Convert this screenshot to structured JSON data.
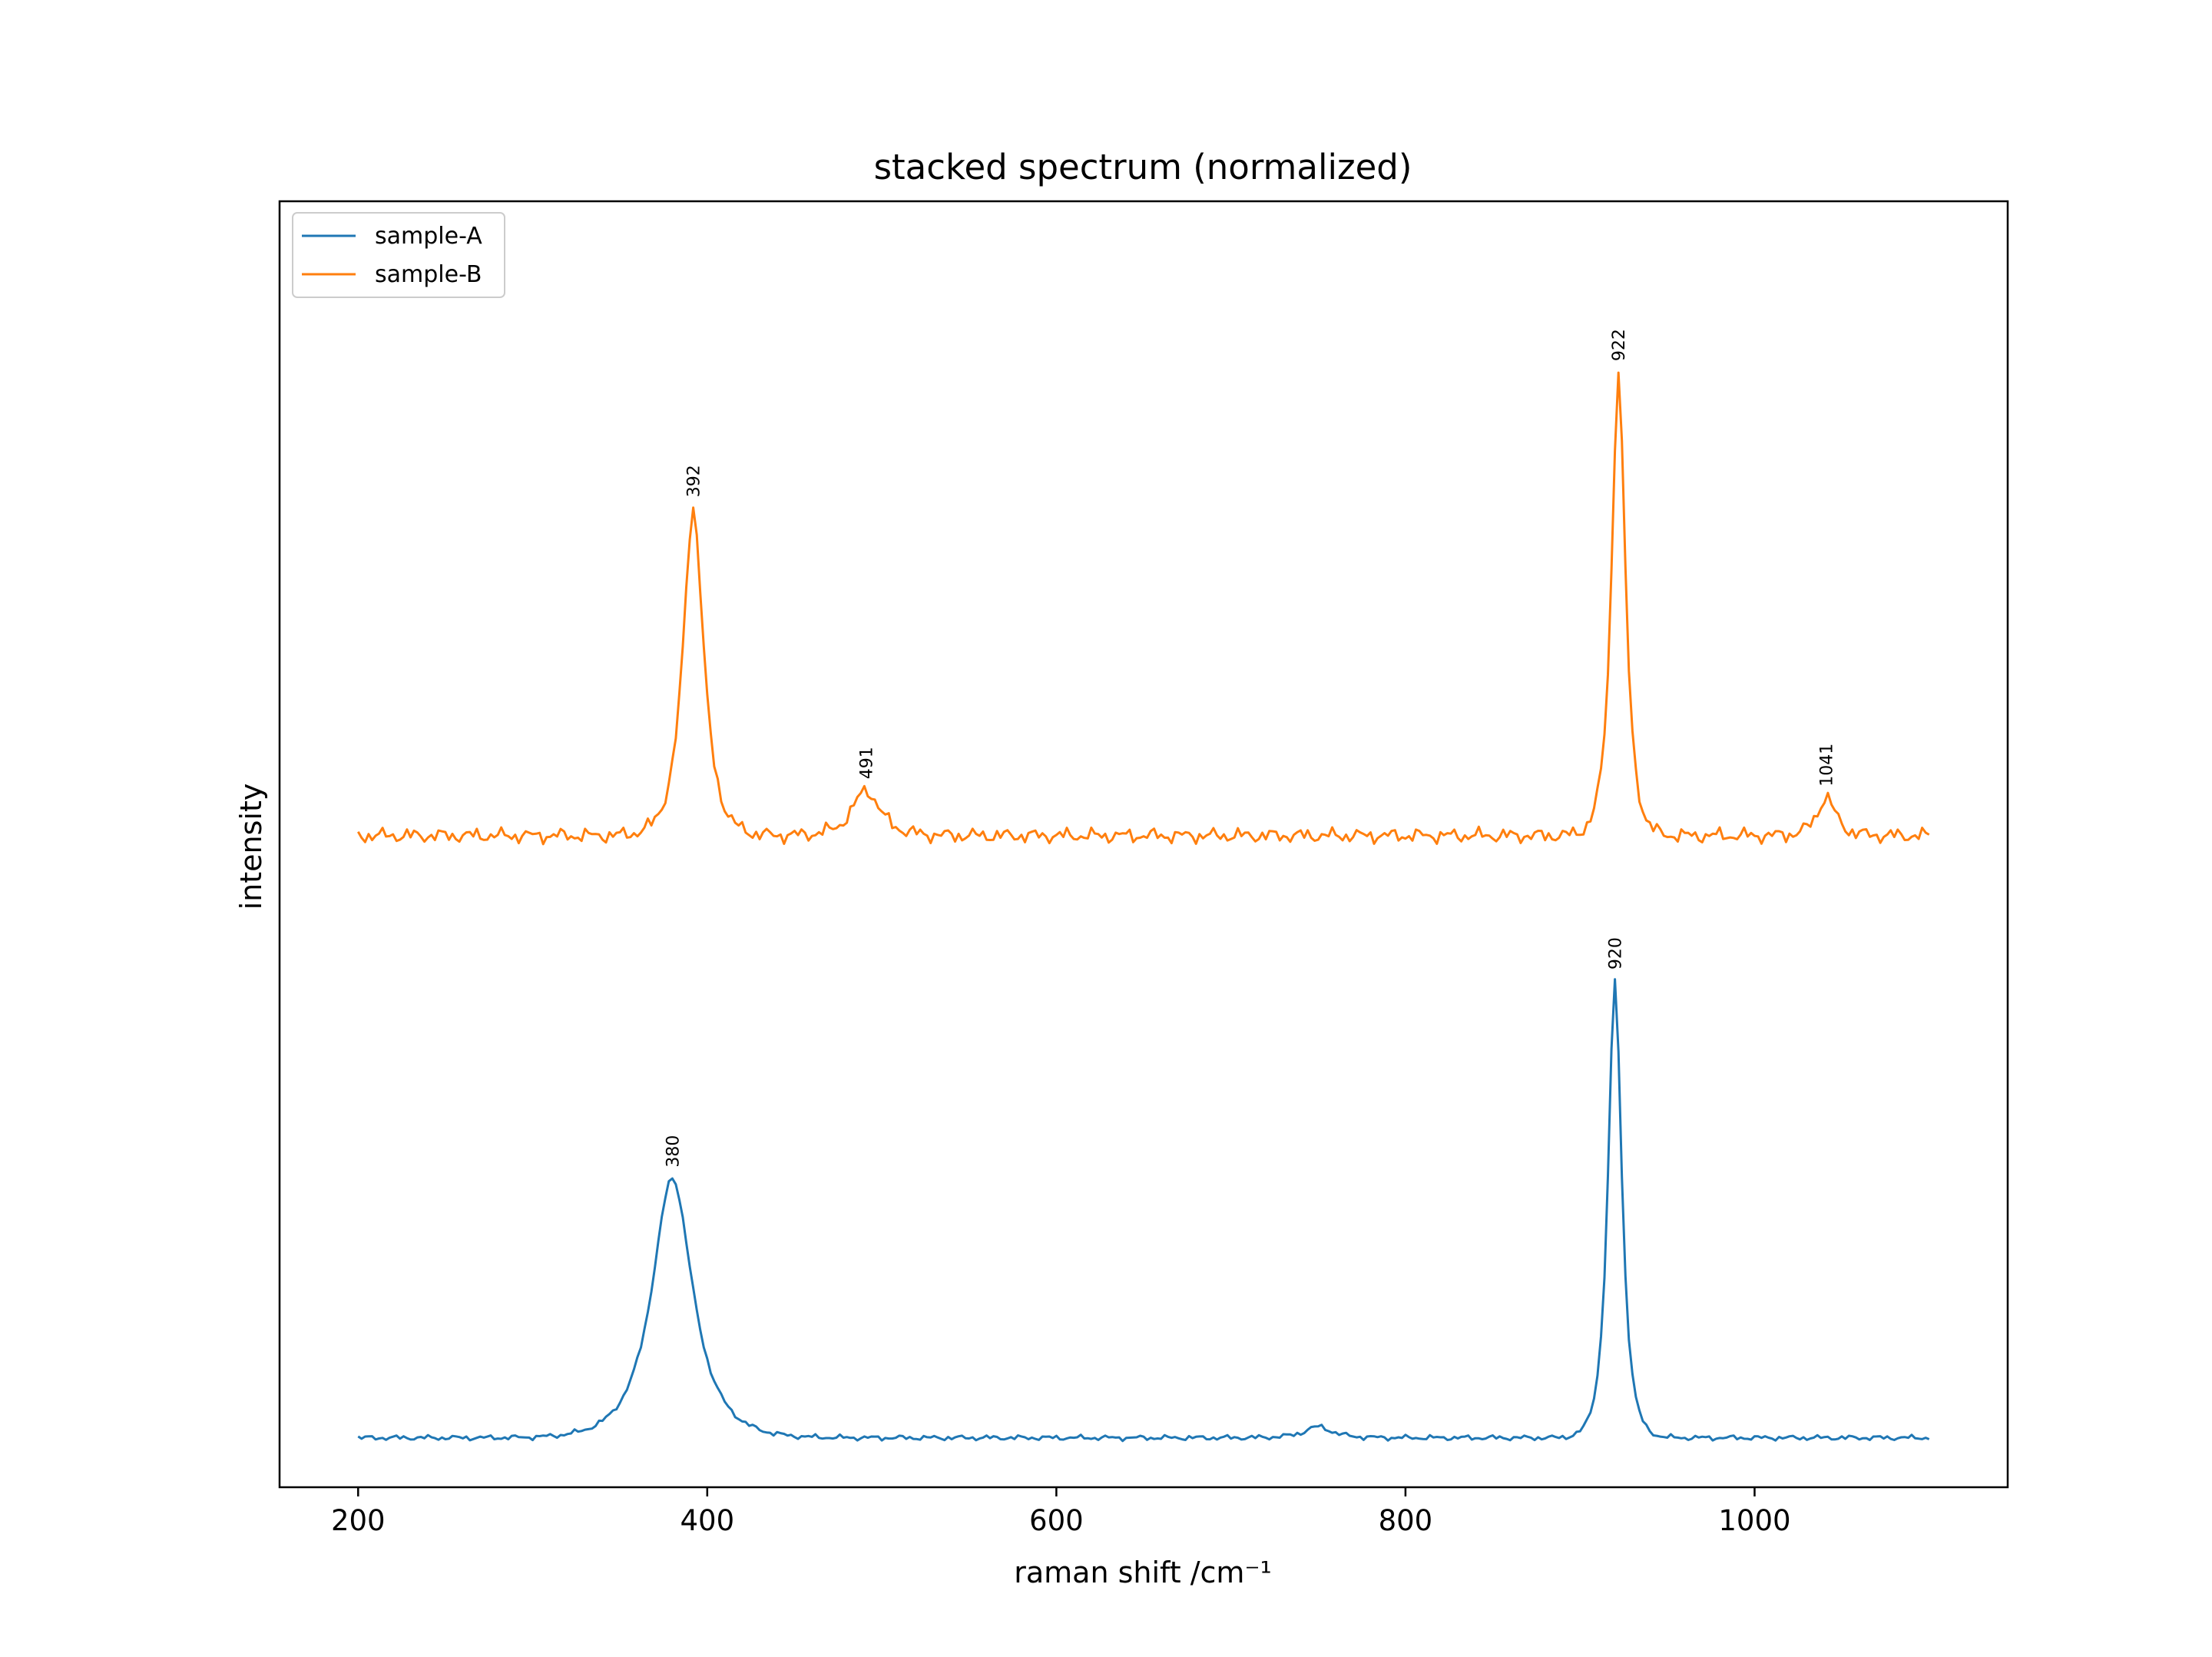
{
  "chart_data": {
    "type": "line",
    "title": "stacked spectrum (normalized)",
    "xlabel": "raman shift /cm⁻¹",
    "ylabel": "intensity",
    "xlim": [
      155,
      1145
    ],
    "ylim": [
      -0.04,
      1.0
    ],
    "xticks": [
      200,
      400,
      600,
      800,
      1000
    ],
    "yticks_visible": false,
    "grid": false,
    "legend": "upper left",
    "x_range": [
      200,
      1100
    ],
    "series": [
      {
        "name": "sample-A",
        "color": "#1f77b4",
        "offset": 0.0,
        "baseline": 0.0,
        "peaks": [
          {
            "x": 380,
            "height": 0.21,
            "width": 18,
            "label": "380"
          },
          {
            "x": 750,
            "height": 0.009,
            "width": 12
          },
          {
            "x": 920,
            "height": 0.37,
            "width": 6,
            "label": "920"
          }
        ]
      },
      {
        "name": "sample-B",
        "color": "#ff7f0e",
        "offset": 0.487,
        "baseline": 0.0,
        "peaks": [
          {
            "x": 392,
            "height": 0.265,
            "width": 9,
            "label": "392"
          },
          {
            "x": 491,
            "height": 0.037,
            "width": 12,
            "label": "491"
          },
          {
            "x": 922,
            "height": 0.375,
            "width": 6,
            "label": "922"
          },
          {
            "x": 1041,
            "height": 0.031,
            "width": 8,
            "label": "1041"
          }
        ]
      }
    ]
  }
}
